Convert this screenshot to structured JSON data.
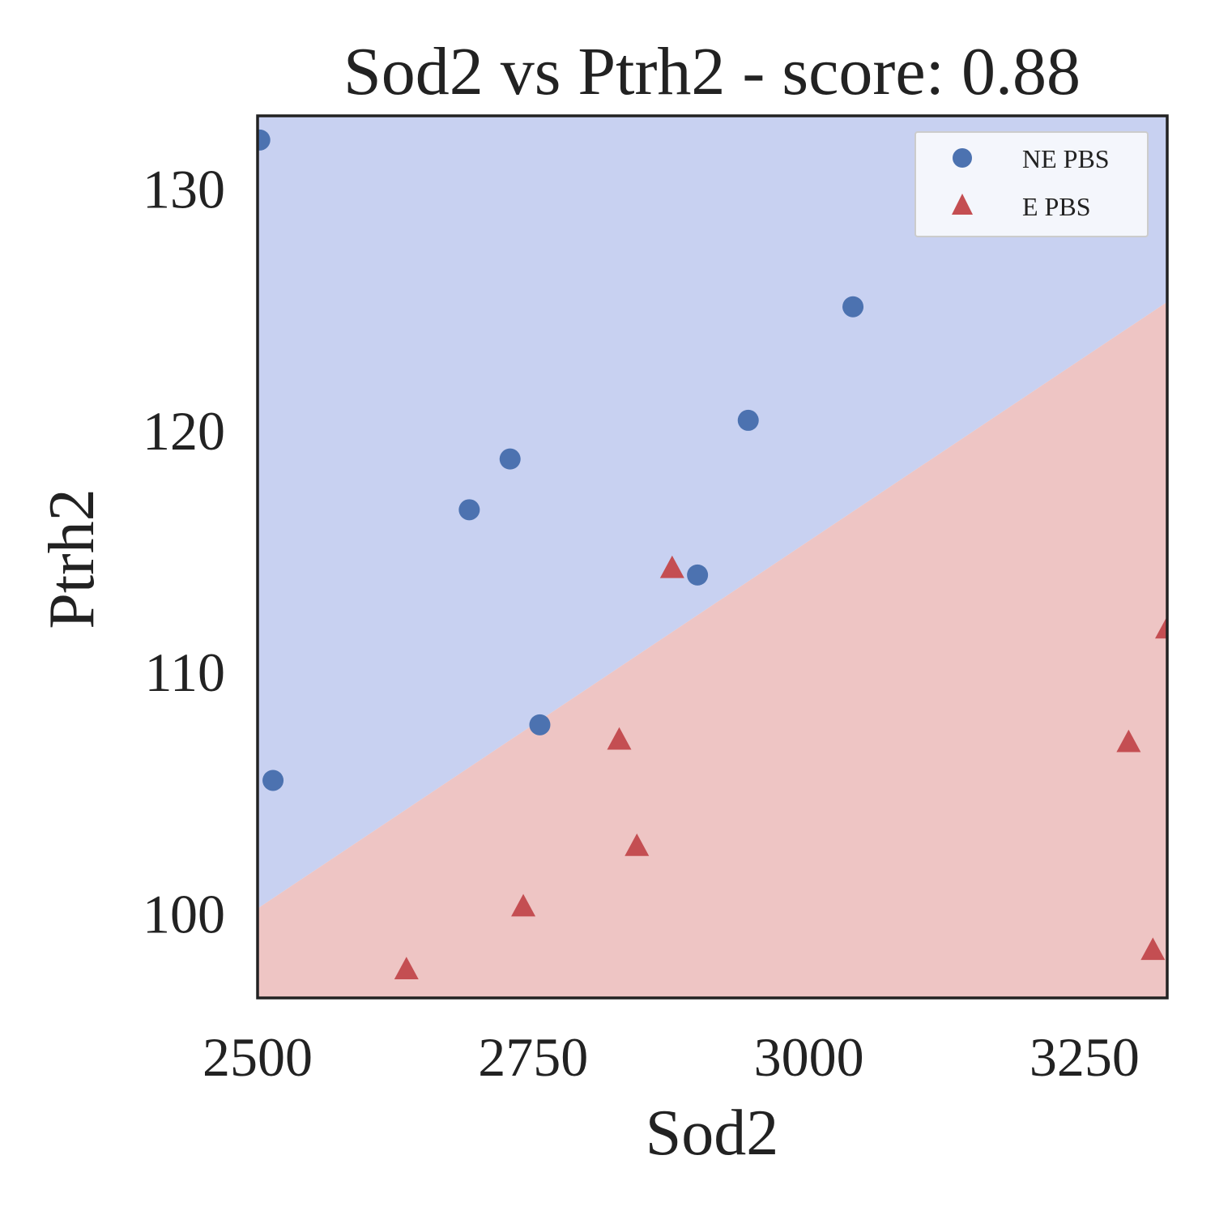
{
  "chart_data": {
    "type": "scatter",
    "title": "Sod2 vs Ptrh2 - score: 0.88",
    "xlabel": "Sod2",
    "ylabel": "Ptrh2",
    "xlim": [
      2500,
      3325
    ],
    "ylim": [
      96.5,
      133
    ],
    "xticks": [
      2500,
      2750,
      3000,
      3250
    ],
    "yticks": [
      100,
      110,
      120,
      130
    ],
    "decision_boundary": {
      "points": [
        [
          2500,
          100.2
        ],
        [
          3325,
          125.3
        ]
      ],
      "upper_region_class": "NE PBS",
      "lower_region_class": "E PBS"
    },
    "region_colors": {
      "upper": "#c8d1f1",
      "lower": "#eec5c4"
    },
    "series": [
      {
        "name": "NE PBS",
        "marker": "circle",
        "color": "#4c72b0",
        "points": [
          [
            2502,
            132
          ],
          [
            2514,
            105.5
          ],
          [
            2692,
            116.7
          ],
          [
            2729,
            118.8
          ],
          [
            2756,
            107.8
          ],
          [
            2899,
            114
          ],
          [
            2945,
            120.4
          ],
          [
            3040,
            125.1
          ]
        ]
      },
      {
        "name": "E PBS",
        "marker": "triangle",
        "color": "#c44e52",
        "points": [
          [
            2635,
            97.7
          ],
          [
            2741,
            100.3
          ],
          [
            2828,
            107.2
          ],
          [
            2844,
            102.8
          ],
          [
            2876,
            114.3
          ],
          [
            3290,
            107.1
          ],
          [
            3312,
            98.5
          ],
          [
            3325,
            111.8
          ]
        ]
      }
    ],
    "legend": {
      "location": "upper right",
      "entries": [
        "NE PBS",
        "E PBS"
      ]
    }
  }
}
